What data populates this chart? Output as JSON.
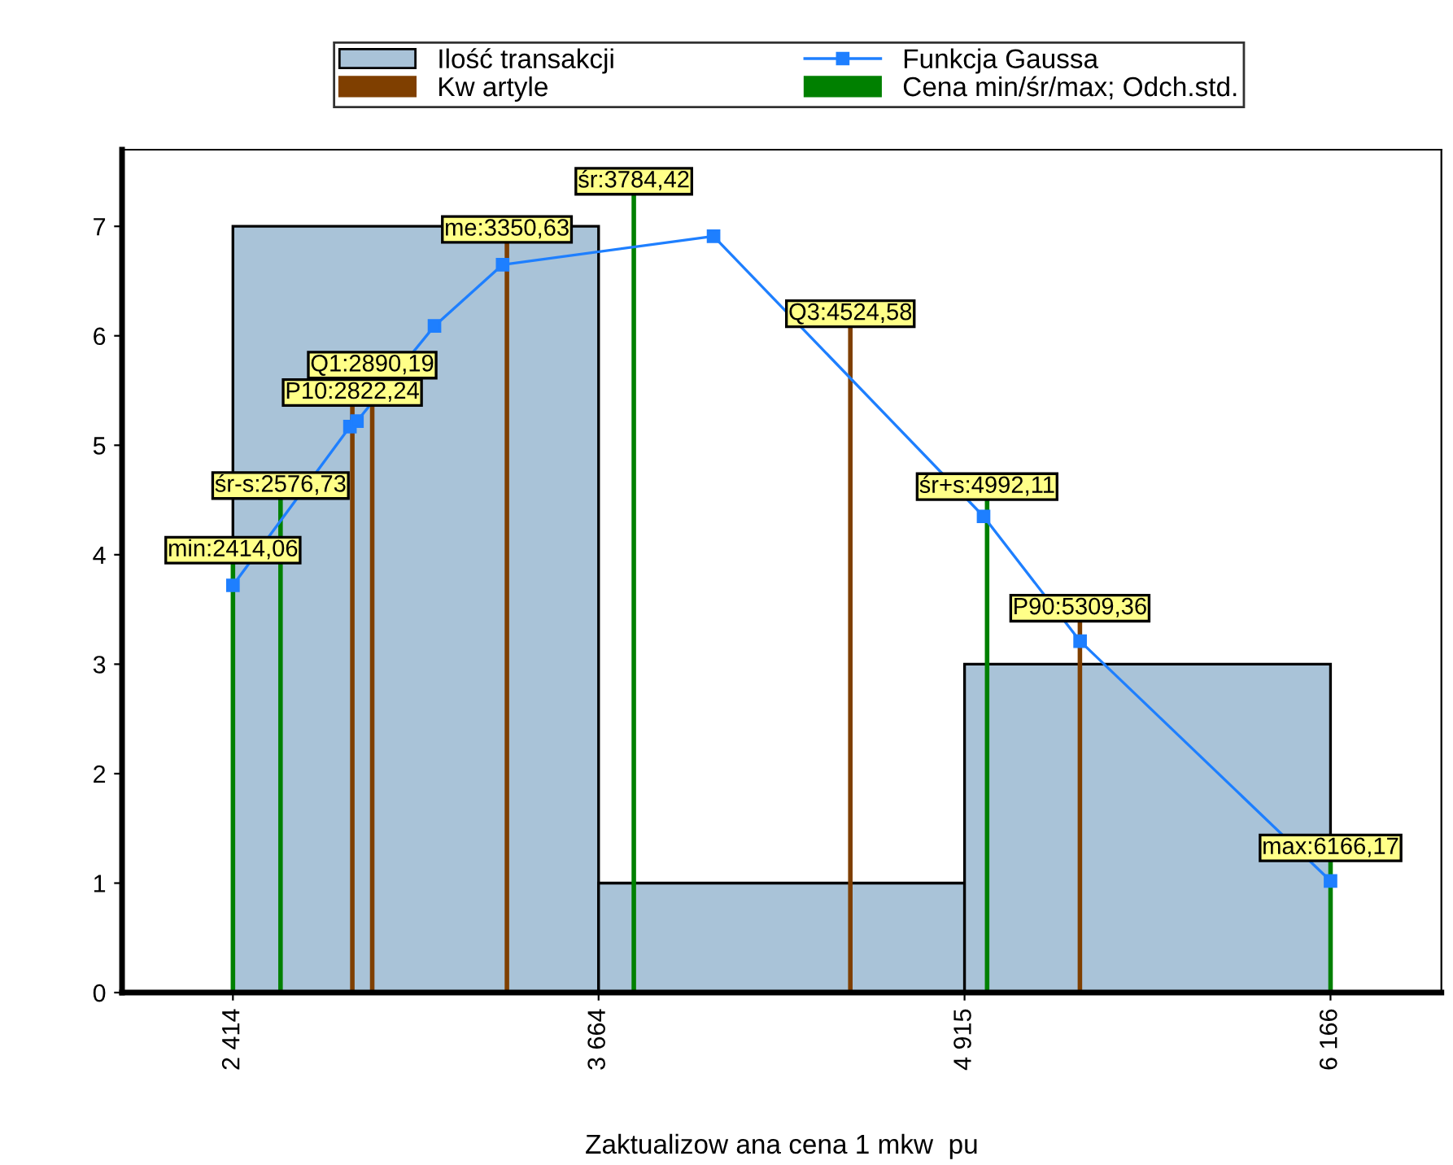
{
  "chart_data": {
    "type": "histogram",
    "xlabel": "Zaktualizow ana cena 1 mkw  pu",
    "bins": [
      2414,
      3664,
      4915,
      6166
    ],
    "xlim": [
      2035,
      6545
    ],
    "xticks": [
      {
        "value": 2414,
        "label": "2 414"
      },
      {
        "value": 3664,
        "label": "3 664"
      },
      {
        "value": 4915,
        "label": "4 915"
      },
      {
        "value": 6166,
        "label": "6 166"
      }
    ],
    "ylim": [
      0,
      7.7
    ],
    "yticks": [
      0,
      1,
      2,
      3,
      4,
      5,
      6,
      7
    ],
    "grid": false,
    "legend": "top",
    "series": [
      {
        "name": "Ilość transakcji",
        "color": "#a9c3d8",
        "values": [
          7,
          1,
          3
        ]
      },
      {
        "name": "Funkcja Gaussa",
        "type": "line",
        "color": "#1e7fff",
        "marker": "square",
        "x": [
          2414.06,
          2814,
          2838,
          3103,
          3336,
          4057,
          4980,
          5310,
          6166
        ],
        "values": [
          3.72,
          5.17,
          5.22,
          6.09,
          6.65,
          6.91,
          4.35,
          3.21,
          1.02
        ]
      },
      {
        "name": "Kw artyle",
        "type": "line",
        "color": "#7f3f00",
        "marker": "none",
        "x": [
          2822.24,
          2822.24,
          null,
          2890.19,
          2890.19,
          null,
          3350.63,
          3350.63,
          null,
          4524.58,
          4524.58,
          null,
          5309.36,
          5309.36
        ],
        "values": [
          0,
          5.36,
          null,
          0,
          5.61,
          null,
          0,
          6.85,
          null,
          0,
          6.08,
          null,
          0,
          3.39
        ]
      },
      {
        "name": "Cena min/śr/max; Odch.std.",
        "type": "line",
        "color": "#008000",
        "marker": "none",
        "x": [
          2414.06,
          2414.06,
          null,
          2576.73,
          2576.73,
          null,
          3784.42,
          3784.42,
          null,
          4992.11,
          4992.11,
          null,
          6166.17,
          6166.17
        ],
        "values": [
          0,
          3.92,
          null,
          0,
          4.51,
          null,
          0,
          7.29,
          null,
          0,
          4.5,
          null,
          0,
          1.2
        ]
      }
    ],
    "annotations": [
      {
        "text": "min:2414,06",
        "x": 2414.06,
        "y": 3.92
      },
      {
        "text": "śr-s:2576,73",
        "x": 2576.73,
        "y": 4.51
      },
      {
        "text": "P10:2822,24",
        "x": 2822.24,
        "y": 5.36
      },
      {
        "text": "Q1:2890,19",
        "x": 2890.19,
        "y": 5.61
      },
      {
        "text": "me:3350,63",
        "x": 3350.63,
        "y": 6.85
      },
      {
        "text": "śr:3784,42",
        "x": 3784.42,
        "y": 7.29
      },
      {
        "text": "Q3:4524,58",
        "x": 4524.58,
        "y": 6.08
      },
      {
        "text": "śr+s:4992,11",
        "x": 4992.11,
        "y": 4.5
      },
      {
        "text": "P90:5309,36",
        "x": 5309.36,
        "y": 3.39
      },
      {
        "text": "max:6166,17",
        "x": 6166.17,
        "y": 1.2
      }
    ]
  }
}
